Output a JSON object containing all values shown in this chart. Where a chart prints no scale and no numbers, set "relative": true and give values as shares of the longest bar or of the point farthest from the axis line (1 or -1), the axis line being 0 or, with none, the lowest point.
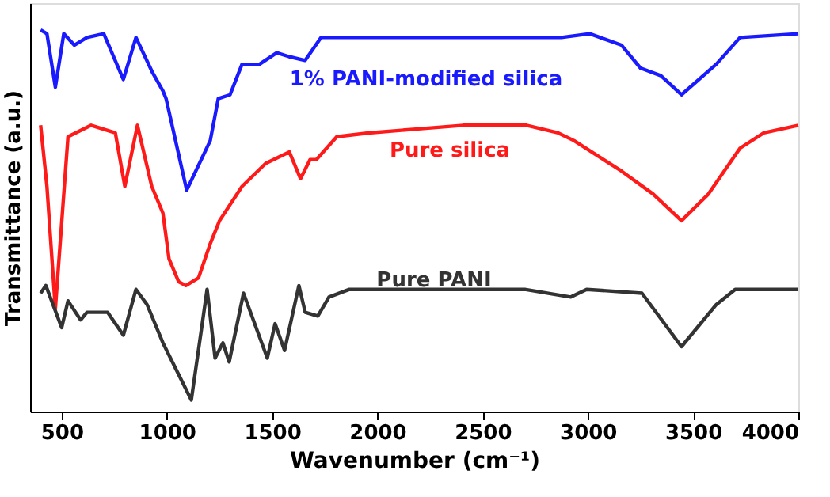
{
  "chart_data": {
    "type": "line",
    "relative": true,
    "xlabel": "Wavenumber (cm⁻¹)",
    "ylabel": "Transmittance (a.u.)",
    "xlim": [
      350,
      4000
    ],
    "xticks": [
      500,
      1000,
      1500,
      2000,
      2500,
      3000,
      3500,
      4000
    ],
    "grid": false,
    "marker": "none",
    "line_style": "solid",
    "series": [
      {
        "name": "1% PANI-modified silica",
        "color": "#1a1aff",
        "x": [
          400,
          430,
          470,
          510,
          560,
          620,
          700,
          793,
          853,
          930,
          981,
          996,
          1094,
          1206,
          1244,
          1300,
          1357,
          1440,
          1522,
          1580,
          1657,
          1732,
          1850,
          2874,
          3009,
          3160,
          3250,
          3347,
          3445,
          3610,
          3723,
          4000
        ],
        "values": [
          1.0,
          0.99,
          0.85,
          0.99,
          0.96,
          0.98,
          0.99,
          0.87,
          0.98,
          0.89,
          0.84,
          0.82,
          0.58,
          0.71,
          0.82,
          0.83,
          0.91,
          0.91,
          0.94,
          0.93,
          0.92,
          0.98,
          0.98,
          0.98,
          0.99,
          0.96,
          0.9,
          0.88,
          0.83,
          0.91,
          0.98,
          0.99
        ]
      },
      {
        "name": "Pure silica",
        "color": "#ff1a1a",
        "x": [
          400,
          430,
          470,
          530,
          640,
          755,
          800,
          860,
          928,
          981,
          1010,
          1056,
          1090,
          1150,
          1206,
          1250,
          1357,
          1469,
          1582,
          1635,
          1680,
          1710,
          1807,
          1958,
          2183,
          2408,
          2709,
          2859,
          2934,
          3160,
          3310,
          3445,
          3573,
          3723,
          3836,
          4000
        ],
        "values": [
          0.75,
          0.59,
          0.27,
          0.72,
          0.75,
          0.73,
          0.59,
          0.75,
          0.59,
          0.52,
          0.4,
          0.34,
          0.33,
          0.35,
          0.44,
          0.5,
          0.59,
          0.65,
          0.68,
          0.61,
          0.66,
          0.66,
          0.72,
          0.73,
          0.74,
          0.75,
          0.75,
          0.73,
          0.71,
          0.63,
          0.57,
          0.5,
          0.57,
          0.69,
          0.73,
          0.75
        ]
      },
      {
        "name": "Pure PANI",
        "color": "#333333",
        "x": [
          400,
          425,
          500,
          530,
          590,
          620,
          718,
          793,
          853,
          906,
          981,
          1116,
          1191,
          1229,
          1266,
          1296,
          1364,
          1477,
          1514,
          1559,
          1627,
          1657,
          1717,
          1770,
          1867,
          2400,
          2700,
          2919,
          2994,
          3257,
          3445,
          3610,
          3700,
          4000
        ],
        "values": [
          0.31,
          0.33,
          0.22,
          0.29,
          0.24,
          0.26,
          0.26,
          0.2,
          0.32,
          0.28,
          0.18,
          0.03,
          0.32,
          0.14,
          0.18,
          0.13,
          0.31,
          0.14,
          0.23,
          0.16,
          0.33,
          0.26,
          0.25,
          0.3,
          0.32,
          0.32,
          0.32,
          0.3,
          0.32,
          0.31,
          0.17,
          0.28,
          0.32,
          0.32
        ]
      }
    ]
  }
}
